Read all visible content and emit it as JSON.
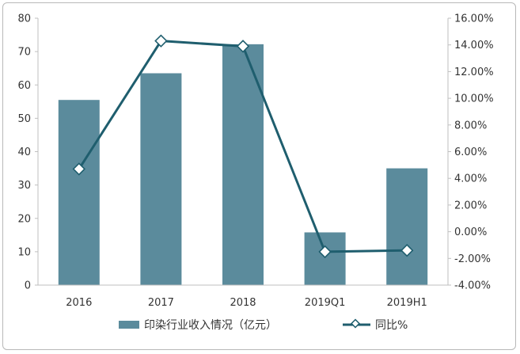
{
  "chart_data": {
    "type": "bar+line",
    "categories": [
      "2016",
      "2017",
      "2018",
      "2019Q1",
      "2019H1"
    ],
    "series": [
      {
        "name": "印染行业收入情况（亿元）",
        "type": "bar",
        "axis": "left",
        "values": [
          55.5,
          63.5,
          72.2,
          15.8,
          35.0
        ]
      },
      {
        "name": "同比%",
        "type": "line",
        "axis": "right",
        "values": [
          4.7,
          14.3,
          13.9,
          -1.5,
          -1.4
        ]
      }
    ],
    "left_axis": {
      "ylim": [
        0,
        80
      ],
      "ticks": [
        "0",
        "10",
        "20",
        "30",
        "40",
        "50",
        "60",
        "70",
        "80"
      ]
    },
    "right_axis": {
      "ylim": [
        -4,
        16
      ],
      "ticks": [
        "-4.00%",
        "-2.00%",
        "0.00%",
        "2.00%",
        "4.00%",
        "6.00%",
        "8.00%",
        "10.00%",
        "12.00%",
        "14.00%",
        "16.00%"
      ]
    },
    "grid": false,
    "legend": "bottom",
    "colors": {
      "bar": "#5b8b9c",
      "line": "#1f5e6e",
      "marker_fill": "#ffffff",
      "axis": "#bfbfbf"
    }
  }
}
